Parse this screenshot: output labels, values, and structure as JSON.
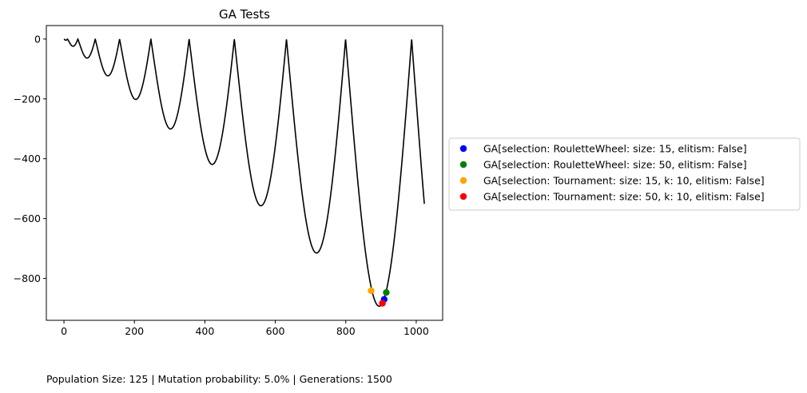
{
  "chart_data": {
    "type": "line",
    "title": "GA Tests",
    "xlabel": "",
    "ylabel": "",
    "xlim": [
      -50,
      1075
    ],
    "ylim": [
      -940,
      45
    ],
    "x_ticks": [
      0,
      200,
      400,
      600,
      800,
      1000
    ],
    "y_ticks": [
      0,
      -200,
      -400,
      -600,
      -800
    ],
    "x_tick_labels": [
      "0",
      "200",
      "400",
      "600",
      "800",
      "1000"
    ],
    "y_tick_labels": [
      "0",
      "−200",
      "−400",
      "−600",
      "−800"
    ],
    "grid": false,
    "legend_placement": "center-left-outside",
    "line_color": "#000000",
    "line_domain": [
      0,
      1023
    ],
    "scatter": [
      {
        "name": "GA[selection: RouletteWheel: size: 15, elitism: False]",
        "color": "#0000ff",
        "x": 909,
        "y": -870
      },
      {
        "name": "GA[selection: RouletteWheel: size: 50, elitism: False]",
        "color": "#008000",
        "x": 915,
        "y": -847
      },
      {
        "name": "GA[selection: Tournament: size: 15, k: 10, elitism: False]",
        "color": "#ffa500",
        "x": 872,
        "y": -841
      },
      {
        "name": "GA[selection: Tournament: size: 50, k: 10, elitism: False]",
        "color": "#ff0000",
        "x": 904,
        "y": -883
      }
    ]
  },
  "caption": "Population Size: 125 | Mutation probability: 5.0% | Generations: 1500"
}
